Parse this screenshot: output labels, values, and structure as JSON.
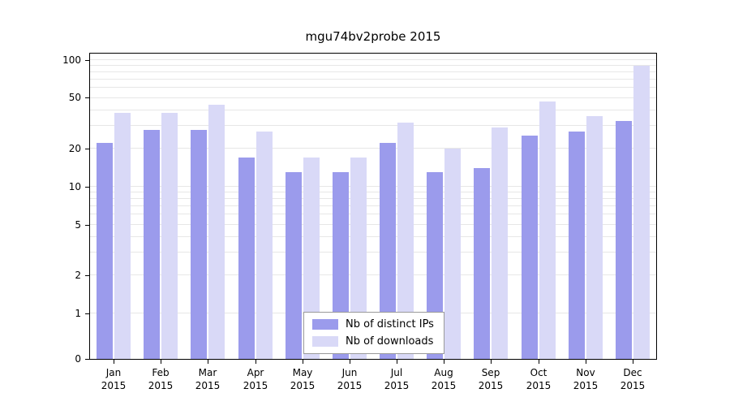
{
  "title": "mgu74bv2probe 2015",
  "colors": {
    "ips": "#9b9bec",
    "downloads": "#d9d9f7",
    "grid": "#e7e7e7",
    "axis": "#000000",
    "legend_border": "#9a9a9a"
  },
  "legend": {
    "entries": [
      {
        "key": "ips",
        "label": "Nb of distinct IPs"
      },
      {
        "key": "downloads",
        "label": "Nb of downloads"
      }
    ]
  },
  "chart_data": {
    "type": "bar",
    "title": "mgu74bv2probe 2015",
    "xlabel": "",
    "ylabel": "",
    "scale": "log-like",
    "grid": "horizontal",
    "legend_position": "bottom-center-inside",
    "year_label": "2015",
    "categories": [
      "Jan",
      "Feb",
      "Mar",
      "Apr",
      "May",
      "Jun",
      "Jul",
      "Aug",
      "Sep",
      "Oct",
      "Nov",
      "Dec"
    ],
    "y_ticks": [
      0,
      1,
      2,
      5,
      10,
      20,
      50,
      100
    ],
    "ylim": [
      0,
      100
    ],
    "series": [
      {
        "name": "Nb of distinct IPs",
        "key": "ips",
        "values": [
          22,
          28,
          28,
          17,
          13,
          13,
          22,
          13,
          14,
          25,
          27,
          33
        ]
      },
      {
        "name": "Nb of downloads",
        "key": "downloads",
        "values": [
          38,
          38,
          44,
          27,
          17,
          17,
          32,
          20,
          29,
          47,
          36,
          90
        ]
      }
    ]
  }
}
